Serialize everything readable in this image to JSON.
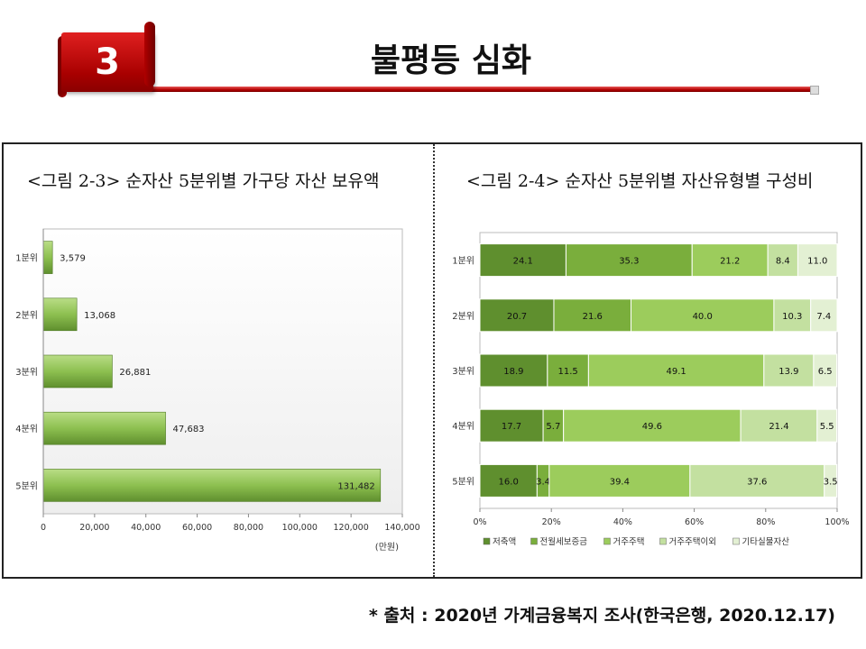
{
  "header": {
    "section_number": "3",
    "title": "불평등 심화"
  },
  "source": "* 출처 : 2020년 가계금융복지 조사(한국은행, 2020.12.17)",
  "colors": {
    "accent_red": "#b30000",
    "bar_green": "#8dc050",
    "frame": "#222222"
  },
  "chart_data": [
    {
      "type": "bar",
      "orientation": "horizontal",
      "title": "<그림 2-3> 순자산 5분위별 가구당 자산 보유액",
      "categories": [
        "1분위",
        "2분위",
        "3분위",
        "4분위",
        "5분위"
      ],
      "values": [
        3579,
        13068,
        26881,
        47683,
        131482
      ],
      "value_labels": [
        "3,579",
        "13,068",
        "26,881",
        "47,683",
        "131,482"
      ],
      "xlim": [
        0,
        140000
      ],
      "xticks": [
        "0",
        "20,000",
        "40,000",
        "60,000",
        "80,000",
        "100,000",
        "120,000",
        "140,000"
      ],
      "unit": "(만원)",
      "grid": false
    },
    {
      "type": "bar",
      "orientation": "horizontal",
      "stacked": true,
      "percent": true,
      "title": "<그림 2-4> 순자산 5분위별 자산유형별 구성비",
      "categories": [
        "1분위",
        "2분위",
        "3분위",
        "4분위",
        "5분위"
      ],
      "series": [
        {
          "name": "저축액",
          "values": [
            24.1,
            20.7,
            18.9,
            17.7,
            16.0
          ],
          "labels": [
            "24.1",
            "20.7",
            "18.9",
            "17.7",
            "16.0"
          ],
          "color": "#5f8f2e"
        },
        {
          "name": "전월세보증금",
          "values": [
            35.3,
            21.6,
            11.5,
            5.7,
            3.4
          ],
          "labels": [
            "35.3",
            "21.6",
            "11.5",
            "5.7",
            "3.4"
          ],
          "color": "#7aae3c"
        },
        {
          "name": "거주주택",
          "values": [
            21.2,
            40.0,
            49.1,
            49.6,
            39.4
          ],
          "labels": [
            "21.2",
            "40.0",
            "49.1",
            "49.6",
            "39.4"
          ],
          "color": "#9ccc5c"
        },
        {
          "name": "거주주택이외",
          "values": [
            8.4,
            10.3,
            13.9,
            21.4,
            37.6
          ],
          "labels": [
            "8.4",
            "10.3",
            "13.9",
            "21.4",
            "37.6"
          ],
          "color": "#c3e0a0"
        },
        {
          "name": "기타실물자산",
          "values": [
            11.0,
            7.4,
            6.5,
            5.5,
            3.5
          ],
          "labels": [
            "11.0",
            "7.4",
            "6.5",
            "5.5",
            "3.5"
          ],
          "color": "#e3f0d3"
        }
      ],
      "xlim": [
        0,
        100
      ],
      "xticks": [
        "0%",
        "20%",
        "40%",
        "60%",
        "80%",
        "100%"
      ],
      "legend_position": "bottom"
    }
  ]
}
